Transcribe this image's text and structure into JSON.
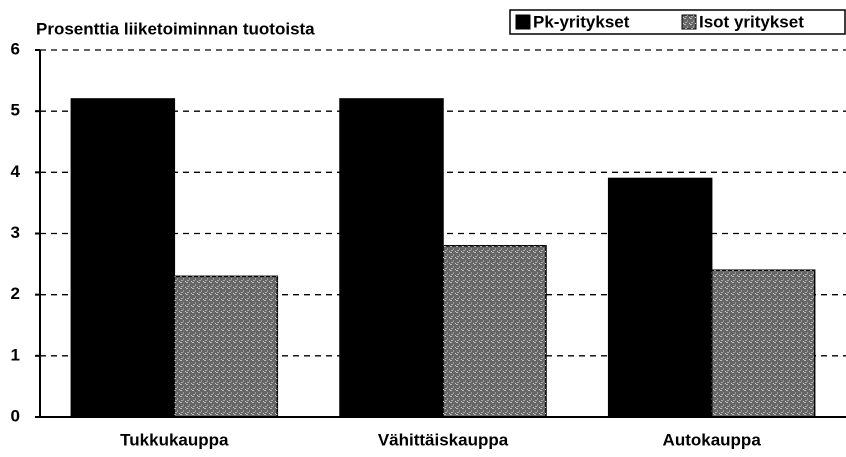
{
  "chart_data": {
    "type": "bar",
    "title": "Prosenttia liiketoiminnan tuotoista",
    "categories": [
      "Tukkukauppa",
      "Vähittäiskauppa",
      "Autokauppa"
    ],
    "series": [
      {
        "name": "Pk-yritykset",
        "color": "#000000",
        "values": [
          5.2,
          5.2,
          3.9
        ]
      },
      {
        "name": "Isot yritykset",
        "color": "#666666",
        "values": [
          2.3,
          2.8,
          2.4
        ]
      }
    ],
    "ylim": [
      0,
      6
    ],
    "yticks": [
      0,
      1,
      2,
      3,
      4,
      5,
      6
    ],
    "grid": true,
    "legend": "upper right"
  }
}
